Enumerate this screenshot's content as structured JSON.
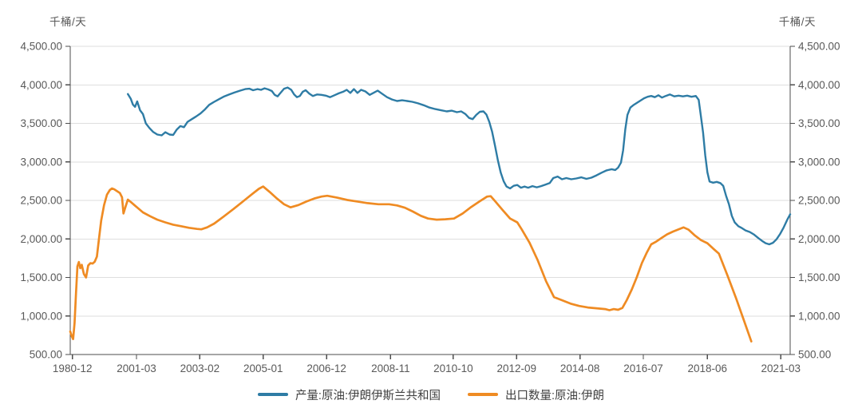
{
  "chart_data": {
    "type": "line",
    "y_axis_unit": "千桶/天",
    "y_axis": {
      "min": 500,
      "max": 4500,
      "step": 500,
      "tick_labels": [
        "500.00",
        "1,000.00",
        "1,500.00",
        "2,000.00",
        "2,500.00",
        "3,000.00",
        "3,500.00",
        "4,000.00",
        "4,500.00"
      ]
    },
    "x_ticks": [
      {
        "label": "1980-12",
        "pos": 0.003
      },
      {
        "label": "2001-03",
        "pos": 0.092
      },
      {
        "label": "2003-02",
        "pos": 0.18
      },
      {
        "label": "2005-01",
        "pos": 0.268
      },
      {
        "label": "2006-12",
        "pos": 0.356
      },
      {
        "label": "2008-11",
        "pos": 0.445
      },
      {
        "label": "2010-10",
        "pos": 0.532
      },
      {
        "label": "2012-09",
        "pos": 0.62
      },
      {
        "label": "2014-08",
        "pos": 0.708
      },
      {
        "label": "2016-07",
        "pos": 0.796
      },
      {
        "label": "2018-06",
        "pos": 0.885
      },
      {
        "label": "2021-03",
        "pos": 0.987
      }
    ],
    "grid": "horizontal",
    "legend_position": "bottom",
    "series": [
      {
        "name": "产量:原油:伊朗伊斯兰共和国",
        "color": "#2e7ca5",
        "points": [
          [
            0.08,
            3880
          ],
          [
            0.084,
            3820
          ],
          [
            0.087,
            3745
          ],
          [
            0.09,
            3715
          ],
          [
            0.093,
            3785
          ],
          [
            0.097,
            3670
          ],
          [
            0.101,
            3620
          ],
          [
            0.105,
            3500
          ],
          [
            0.11,
            3440
          ],
          [
            0.115,
            3390
          ],
          [
            0.121,
            3355
          ],
          [
            0.127,
            3345
          ],
          [
            0.132,
            3385
          ],
          [
            0.138,
            3355
          ],
          [
            0.143,
            3350
          ],
          [
            0.148,
            3420
          ],
          [
            0.153,
            3465
          ],
          [
            0.158,
            3450
          ],
          [
            0.163,
            3520
          ],
          [
            0.169,
            3555
          ],
          [
            0.175,
            3590
          ],
          [
            0.181,
            3630
          ],
          [
            0.187,
            3680
          ],
          [
            0.193,
            3740
          ],
          [
            0.2,
            3780
          ],
          [
            0.207,
            3815
          ],
          [
            0.214,
            3850
          ],
          [
            0.221,
            3875
          ],
          [
            0.228,
            3900
          ],
          [
            0.236,
            3925
          ],
          [
            0.243,
            3945
          ],
          [
            0.249,
            3950
          ],
          [
            0.254,
            3930
          ],
          [
            0.26,
            3945
          ],
          [
            0.265,
            3935
          ],
          [
            0.27,
            3955
          ],
          [
            0.275,
            3940
          ],
          [
            0.28,
            3920
          ],
          [
            0.284,
            3870
          ],
          [
            0.288,
            3850
          ],
          [
            0.292,
            3895
          ],
          [
            0.297,
            3950
          ],
          [
            0.302,
            3965
          ],
          [
            0.307,
            3935
          ],
          [
            0.311,
            3875
          ],
          [
            0.315,
            3840
          ],
          [
            0.319,
            3855
          ],
          [
            0.323,
            3910
          ],
          [
            0.327,
            3930
          ],
          [
            0.332,
            3885
          ],
          [
            0.337,
            3855
          ],
          [
            0.343,
            3875
          ],
          [
            0.349,
            3870
          ],
          [
            0.355,
            3860
          ],
          [
            0.361,
            3840
          ],
          [
            0.367,
            3865
          ],
          [
            0.373,
            3890
          ],
          [
            0.379,
            3910
          ],
          [
            0.384,
            3935
          ],
          [
            0.389,
            3895
          ],
          [
            0.394,
            3945
          ],
          [
            0.399,
            3895
          ],
          [
            0.404,
            3935
          ],
          [
            0.41,
            3915
          ],
          [
            0.416,
            3870
          ],
          [
            0.421,
            3895
          ],
          [
            0.427,
            3925
          ],
          [
            0.433,
            3885
          ],
          [
            0.44,
            3840
          ],
          [
            0.447,
            3810
          ],
          [
            0.454,
            3790
          ],
          [
            0.461,
            3800
          ],
          [
            0.468,
            3790
          ],
          [
            0.475,
            3780
          ],
          [
            0.483,
            3760
          ],
          [
            0.491,
            3735
          ],
          [
            0.499,
            3705
          ],
          [
            0.507,
            3685
          ],
          [
            0.515,
            3670
          ],
          [
            0.523,
            3655
          ],
          [
            0.53,
            3665
          ],
          [
            0.537,
            3645
          ],
          [
            0.543,
            3655
          ],
          [
            0.549,
            3620
          ],
          [
            0.554,
            3570
          ],
          [
            0.559,
            3555
          ],
          [
            0.564,
            3610
          ],
          [
            0.569,
            3650
          ],
          [
            0.574,
            3655
          ],
          [
            0.578,
            3615
          ],
          [
            0.582,
            3520
          ],
          [
            0.586,
            3390
          ],
          [
            0.59,
            3210
          ],
          [
            0.594,
            3020
          ],
          [
            0.598,
            2860
          ],
          [
            0.602,
            2750
          ],
          [
            0.606,
            2680
          ],
          [
            0.611,
            2655
          ],
          [
            0.616,
            2690
          ],
          [
            0.621,
            2700
          ],
          [
            0.626,
            2665
          ],
          [
            0.631,
            2680
          ],
          [
            0.636,
            2665
          ],
          [
            0.642,
            2685
          ],
          [
            0.648,
            2670
          ],
          [
            0.654,
            2685
          ],
          [
            0.66,
            2705
          ],
          [
            0.666,
            2725
          ],
          [
            0.671,
            2790
          ],
          [
            0.677,
            2810
          ],
          [
            0.683,
            2775
          ],
          [
            0.689,
            2790
          ],
          [
            0.696,
            2775
          ],
          [
            0.703,
            2785
          ],
          [
            0.71,
            2800
          ],
          [
            0.717,
            2780
          ],
          [
            0.724,
            2795
          ],
          [
            0.731,
            2825
          ],
          [
            0.738,
            2860
          ],
          [
            0.745,
            2890
          ],
          [
            0.752,
            2905
          ],
          [
            0.757,
            2895
          ],
          [
            0.761,
            2925
          ],
          [
            0.765,
            2990
          ],
          [
            0.768,
            3150
          ],
          [
            0.771,
            3420
          ],
          [
            0.774,
            3610
          ],
          [
            0.778,
            3705
          ],
          [
            0.782,
            3735
          ],
          [
            0.787,
            3765
          ],
          [
            0.792,
            3795
          ],
          [
            0.797,
            3825
          ],
          [
            0.802,
            3845
          ],
          [
            0.807,
            3855
          ],
          [
            0.812,
            3840
          ],
          [
            0.817,
            3865
          ],
          [
            0.822,
            3835
          ],
          [
            0.827,
            3855
          ],
          [
            0.833,
            3875
          ],
          [
            0.839,
            3850
          ],
          [
            0.845,
            3860
          ],
          [
            0.851,
            3850
          ],
          [
            0.857,
            3860
          ],
          [
            0.863,
            3845
          ],
          [
            0.869,
            3855
          ],
          [
            0.873,
            3805
          ],
          [
            0.876,
            3590
          ],
          [
            0.879,
            3380
          ],
          [
            0.882,
            3085
          ],
          [
            0.885,
            2865
          ],
          [
            0.888,
            2745
          ],
          [
            0.893,
            2730
          ],
          [
            0.898,
            2740
          ],
          [
            0.903,
            2725
          ],
          [
            0.907,
            2690
          ],
          [
            0.911,
            2560
          ],
          [
            0.915,
            2450
          ],
          [
            0.919,
            2300
          ],
          [
            0.923,
            2215
          ],
          [
            0.928,
            2165
          ],
          [
            0.933,
            2140
          ],
          [
            0.938,
            2110
          ],
          [
            0.944,
            2090
          ],
          [
            0.95,
            2055
          ],
          [
            0.956,
            2010
          ],
          [
            0.961,
            1975
          ],
          [
            0.966,
            1945
          ],
          [
            0.971,
            1930
          ],
          [
            0.976,
            1950
          ],
          [
            0.981,
            1995
          ],
          [
            0.986,
            2065
          ],
          [
            0.991,
            2150
          ],
          [
            0.996,
            2250
          ],
          [
            1.0,
            2320
          ]
        ]
      },
      {
        "name": "出口数量:原油:伊朗",
        "color": "#ef8b23",
        "points": [
          [
            0.0,
            800
          ],
          [
            0.002,
            740
          ],
          [
            0.004,
            700
          ],
          [
            0.006,
            905
          ],
          [
            0.008,
            1290
          ],
          [
            0.01,
            1645
          ],
          [
            0.012,
            1700
          ],
          [
            0.014,
            1620
          ],
          [
            0.016,
            1665
          ],
          [
            0.019,
            1545
          ],
          [
            0.022,
            1500
          ],
          [
            0.025,
            1655
          ],
          [
            0.028,
            1685
          ],
          [
            0.031,
            1680
          ],
          [
            0.034,
            1705
          ],
          [
            0.037,
            1770
          ],
          [
            0.04,
            2010
          ],
          [
            0.043,
            2240
          ],
          [
            0.047,
            2440
          ],
          [
            0.051,
            2575
          ],
          [
            0.055,
            2635
          ],
          [
            0.058,
            2655
          ],
          [
            0.061,
            2645
          ],
          [
            0.065,
            2620
          ],
          [
            0.069,
            2595
          ],
          [
            0.072,
            2540
          ],
          [
            0.074,
            2330
          ],
          [
            0.077,
            2425
          ],
          [
            0.08,
            2510
          ],
          [
            0.084,
            2480
          ],
          [
            0.089,
            2440
          ],
          [
            0.094,
            2400
          ],
          [
            0.101,
            2345
          ],
          [
            0.111,
            2295
          ],
          [
            0.121,
            2250
          ],
          [
            0.132,
            2215
          ],
          [
            0.143,
            2185
          ],
          [
            0.154,
            2165
          ],
          [
            0.165,
            2145
          ],
          [
            0.176,
            2130
          ],
          [
            0.182,
            2125
          ],
          [
            0.19,
            2150
          ],
          [
            0.2,
            2200
          ],
          [
            0.213,
            2290
          ],
          [
            0.227,
            2390
          ],
          [
            0.241,
            2495
          ],
          [
            0.253,
            2585
          ],
          [
            0.262,
            2650
          ],
          [
            0.268,
            2680
          ],
          [
            0.277,
            2610
          ],
          [
            0.287,
            2525
          ],
          [
            0.297,
            2450
          ],
          [
            0.306,
            2410
          ],
          [
            0.317,
            2440
          ],
          [
            0.328,
            2485
          ],
          [
            0.339,
            2525
          ],
          [
            0.349,
            2550
          ],
          [
            0.357,
            2560
          ],
          [
            0.371,
            2535
          ],
          [
            0.385,
            2505
          ],
          [
            0.399,
            2485
          ],
          [
            0.413,
            2465
          ],
          [
            0.428,
            2450
          ],
          [
            0.443,
            2450
          ],
          [
            0.454,
            2435
          ],
          [
            0.465,
            2405
          ],
          [
            0.476,
            2355
          ],
          [
            0.487,
            2300
          ],
          [
            0.497,
            2265
          ],
          [
            0.509,
            2250
          ],
          [
            0.521,
            2255
          ],
          [
            0.533,
            2265
          ],
          [
            0.545,
            2330
          ],
          [
            0.557,
            2415
          ],
          [
            0.569,
            2490
          ],
          [
            0.579,
            2550
          ],
          [
            0.584,
            2555
          ],
          [
            0.591,
            2480
          ],
          [
            0.601,
            2370
          ],
          [
            0.611,
            2265
          ],
          [
            0.621,
            2215
          ],
          [
            0.627,
            2125
          ],
          [
            0.638,
            1950
          ],
          [
            0.649,
            1730
          ],
          [
            0.661,
            1450
          ],
          [
            0.672,
            1245
          ],
          [
            0.683,
            1205
          ],
          [
            0.695,
            1160
          ],
          [
            0.707,
            1130
          ],
          [
            0.719,
            1110
          ],
          [
            0.731,
            1100
          ],
          [
            0.743,
            1090
          ],
          [
            0.749,
            1075
          ],
          [
            0.755,
            1090
          ],
          [
            0.761,
            1080
          ],
          [
            0.767,
            1105
          ],
          [
            0.773,
            1205
          ],
          [
            0.78,
            1345
          ],
          [
            0.787,
            1505
          ],
          [
            0.794,
            1685
          ],
          [
            0.801,
            1825
          ],
          [
            0.807,
            1930
          ],
          [
            0.813,
            1960
          ],
          [
            0.821,
            2010
          ],
          [
            0.829,
            2060
          ],
          [
            0.837,
            2095
          ],
          [
            0.845,
            2125
          ],
          [
            0.852,
            2150
          ],
          [
            0.859,
            2120
          ],
          [
            0.867,
            2050
          ],
          [
            0.876,
            1985
          ],
          [
            0.885,
            1945
          ],
          [
            0.893,
            1875
          ],
          [
            0.901,
            1810
          ],
          [
            0.913,
            1525
          ],
          [
            0.925,
            1225
          ],
          [
            0.936,
            935
          ],
          [
            0.946,
            670
          ]
        ]
      }
    ]
  },
  "colors": {
    "background": "#ffffff",
    "axis": "#4d4d4d",
    "grid": "#dedede",
    "tick_text": "#595959",
    "legend_text": "#404040"
  }
}
